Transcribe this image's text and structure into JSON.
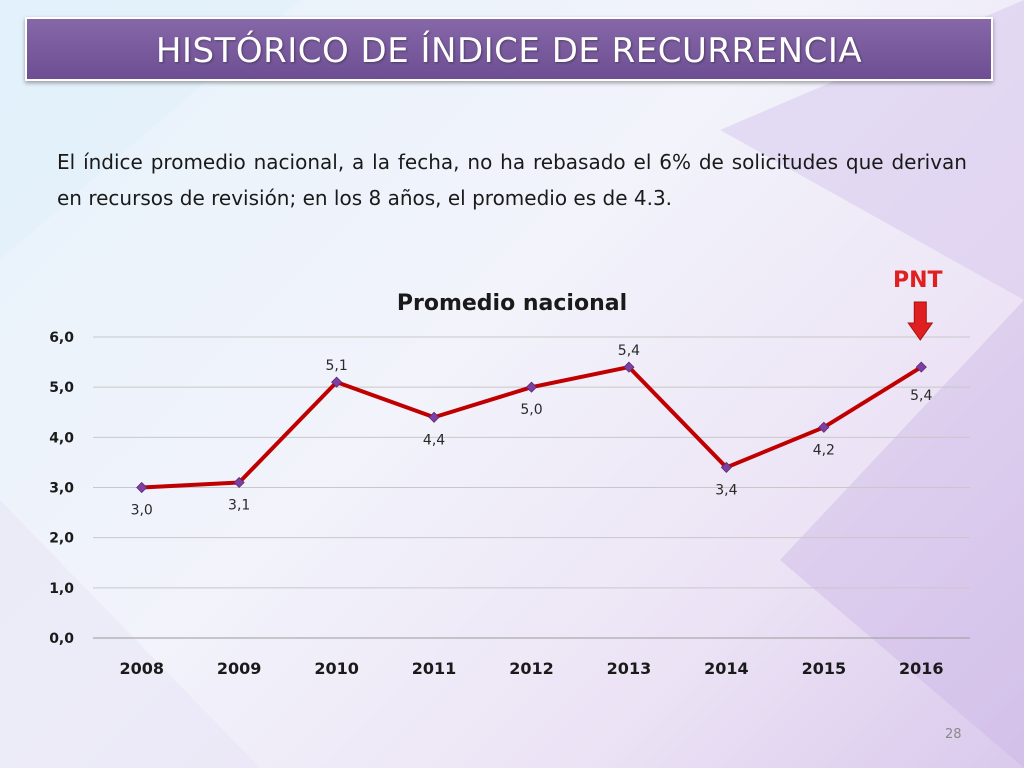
{
  "slide": {
    "title": "HISTÓRICO DE ÍNDICE DE RECURRENCIA",
    "description": "El índice promedio nacional, a la fecha, no ha rebasado el 6% de solicitudes que derivan en recursos de revisión; en los 8 años, el promedio es de 4.3.",
    "annotation": "PNT",
    "page_number": "28"
  },
  "colors": {
    "title_bg": "#7a5b9e",
    "line": "#c00000",
    "marker": "#7f3fa0",
    "annotation": "#e02020"
  },
  "chart_data": {
    "type": "line",
    "title": "Promedio nacional",
    "categories": [
      "2008",
      "2009",
      "2010",
      "2011",
      "2012",
      "2013",
      "2014",
      "2015",
      "2016"
    ],
    "series": [
      {
        "values": [
          3.0,
          3.1,
          5.1,
          4.4,
          5.0,
          5.4,
          3.4,
          4.2,
          5.4
        ],
        "labels": [
          "3,0",
          "3,1",
          "5,1",
          "4,4",
          "5,0",
          "5,4",
          "3,4",
          "4,2",
          "5,4"
        ]
      }
    ],
    "yticks": [
      "0,0",
      "1,0",
      "2,0",
      "3,0",
      "4,0",
      "5,0",
      "6,0"
    ],
    "ylim": [
      0,
      6
    ],
    "grid": true,
    "annotation_category": "2016"
  }
}
